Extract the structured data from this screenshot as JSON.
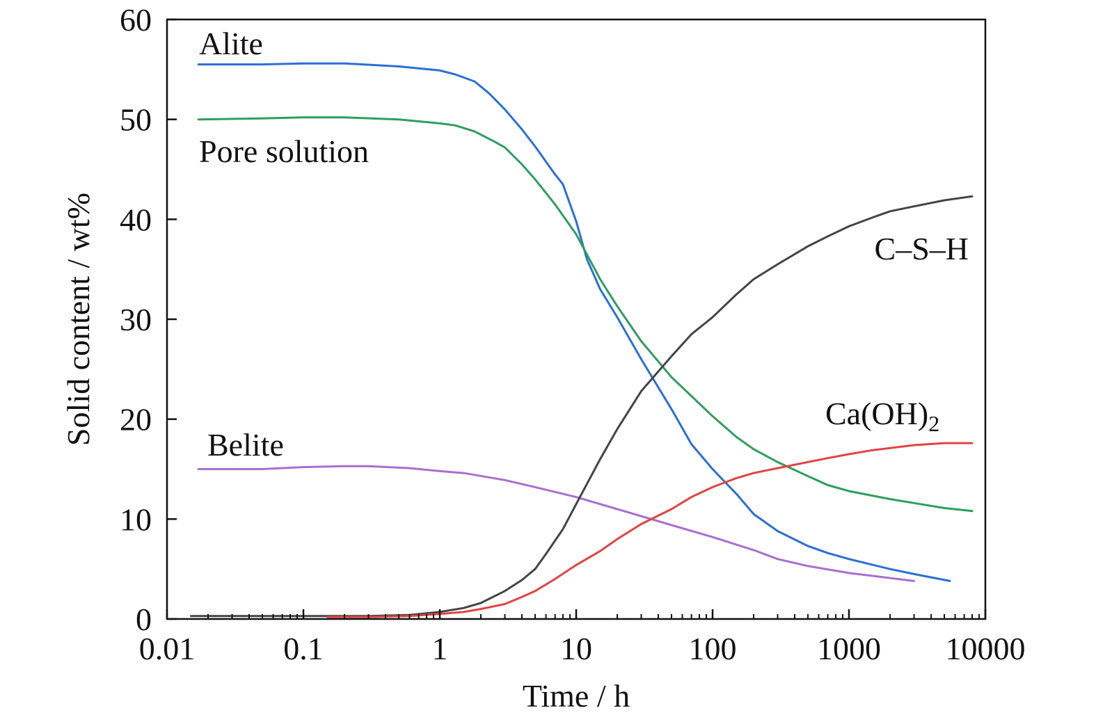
{
  "chart_data": {
    "type": "line",
    "title": "",
    "xlabel": "Time / h",
    "ylabel": "Solid content / wt%",
    "xscale": "log",
    "xlim": [
      0.01,
      10000
    ],
    "ylim": [
      0,
      60
    ],
    "grid": false,
    "legend": "none (series labelled directly on plot)",
    "x_ticks": [
      0.01,
      0.1,
      1,
      10,
      100,
      1000,
      10000
    ],
    "x_tick_labels": [
      "0.01",
      "0.1",
      "1",
      "10",
      "100",
      "1000",
      "10000"
    ],
    "y_ticks": [
      0,
      10,
      20,
      30,
      40,
      50,
      60
    ],
    "y_tick_labels": [
      "0",
      "10",
      "20",
      "30",
      "40",
      "50",
      "60"
    ],
    "series": [
      {
        "name": "Alite",
        "color": "#2a6fd6",
        "label_text": "Alite",
        "points": [
          [
            0.017,
            55.5
          ],
          [
            0.05,
            55.5
          ],
          [
            0.1,
            55.6
          ],
          [
            0.2,
            55.6
          ],
          [
            0.5,
            55.3
          ],
          [
            1,
            54.9
          ],
          [
            1.3,
            54.5
          ],
          [
            1.8,
            53.8
          ],
          [
            2.3,
            52.6
          ],
          [
            3,
            51.0
          ],
          [
            4,
            49.0
          ],
          [
            5,
            47.3
          ],
          [
            7,
            44.5
          ],
          [
            8,
            43.5
          ],
          [
            10,
            39.8
          ],
          [
            12,
            36.0
          ],
          [
            15,
            33.0
          ],
          [
            20,
            30.2
          ],
          [
            30,
            26.0
          ],
          [
            50,
            21.0
          ],
          [
            70,
            17.5
          ],
          [
            100,
            15.0
          ],
          [
            150,
            12.5
          ],
          [
            200,
            10.5
          ],
          [
            300,
            8.8
          ],
          [
            500,
            7.3
          ],
          [
            700,
            6.6
          ],
          [
            1000,
            6.0
          ],
          [
            2000,
            5.0
          ],
          [
            3000,
            4.5
          ],
          [
            5500,
            3.8
          ]
        ]
      },
      {
        "name": "Pore solution",
        "color": "#2e9e5e",
        "label_text": "Pore solution",
        "points": [
          [
            0.017,
            50.0
          ],
          [
            0.05,
            50.1
          ],
          [
            0.1,
            50.2
          ],
          [
            0.2,
            50.2
          ],
          [
            0.5,
            50.0
          ],
          [
            1,
            49.6
          ],
          [
            1.3,
            49.4
          ],
          [
            1.8,
            48.8
          ],
          [
            2.5,
            47.8
          ],
          [
            3,
            47.2
          ],
          [
            4,
            45.5
          ],
          [
            5,
            44.0
          ],
          [
            7,
            41.5
          ],
          [
            10,
            38.5
          ],
          [
            15,
            34.0
          ],
          [
            20,
            31.3
          ],
          [
            30,
            27.8
          ],
          [
            50,
            24.2
          ],
          [
            100,
            20.3
          ],
          [
            150,
            18.2
          ],
          [
            200,
            17.0
          ],
          [
            300,
            15.7
          ],
          [
            500,
            14.3
          ],
          [
            700,
            13.4
          ],
          [
            1000,
            12.8
          ],
          [
            2000,
            12.0
          ],
          [
            3000,
            11.6
          ],
          [
            5000,
            11.1
          ],
          [
            8000,
            10.8
          ]
        ]
      },
      {
        "name": "Belite",
        "color": "#a86fd0",
        "label_text": "Belite",
        "points": [
          [
            0.017,
            15.0
          ],
          [
            0.05,
            15.0
          ],
          [
            0.1,
            15.2
          ],
          [
            0.2,
            15.3
          ],
          [
            0.3,
            15.3
          ],
          [
            0.6,
            15.1
          ],
          [
            1,
            14.8
          ],
          [
            1.5,
            14.6
          ],
          [
            3,
            13.9
          ],
          [
            5,
            13.2
          ],
          [
            10,
            12.2
          ],
          [
            20,
            11.0
          ],
          [
            50,
            9.4
          ],
          [
            100,
            8.2
          ],
          [
            200,
            6.9
          ],
          [
            300,
            6.0
          ],
          [
            500,
            5.3
          ],
          [
            1000,
            4.6
          ],
          [
            2000,
            4.1
          ],
          [
            3000,
            3.8
          ]
        ]
      },
      {
        "name": "C–S–H",
        "color": "#444444",
        "label_text": "C–S–H",
        "points": [
          [
            0.015,
            0.3
          ],
          [
            0.1,
            0.3
          ],
          [
            0.3,
            0.3
          ],
          [
            0.6,
            0.4
          ],
          [
            1,
            0.7
          ],
          [
            1.5,
            1.1
          ],
          [
            2,
            1.6
          ],
          [
            3,
            2.8
          ],
          [
            4,
            3.9
          ],
          [
            5,
            5.0
          ],
          [
            6,
            6.5
          ],
          [
            8,
            9.0
          ],
          [
            10,
            11.5
          ],
          [
            15,
            16.0
          ],
          [
            20,
            19.0
          ],
          [
            30,
            22.8
          ],
          [
            50,
            26.3
          ],
          [
            70,
            28.5
          ],
          [
            100,
            30.2
          ],
          [
            150,
            32.5
          ],
          [
            200,
            34.0
          ],
          [
            300,
            35.5
          ],
          [
            500,
            37.3
          ],
          [
            700,
            38.3
          ],
          [
            1000,
            39.3
          ],
          [
            1500,
            40.2
          ],
          [
            2000,
            40.8
          ],
          [
            3000,
            41.3
          ],
          [
            5000,
            41.9
          ],
          [
            8000,
            42.3
          ]
        ]
      },
      {
        "name": "Ca(OH)2",
        "color": "#e04444",
        "label_text": "Ca(OH)",
        "label_subscript": "2",
        "points": [
          [
            0.15,
            0.2
          ],
          [
            0.3,
            0.2
          ],
          [
            0.6,
            0.3
          ],
          [
            1,
            0.5
          ],
          [
            1.5,
            0.7
          ],
          [
            2,
            1.0
          ],
          [
            3,
            1.5
          ],
          [
            4,
            2.2
          ],
          [
            5,
            2.8
          ],
          [
            7,
            4.0
          ],
          [
            10,
            5.4
          ],
          [
            15,
            6.8
          ],
          [
            20,
            8.0
          ],
          [
            30,
            9.5
          ],
          [
            50,
            11.0
          ],
          [
            70,
            12.2
          ],
          [
            100,
            13.2
          ],
          [
            150,
            14.1
          ],
          [
            200,
            14.6
          ],
          [
            300,
            15.1
          ],
          [
            500,
            15.7
          ],
          [
            700,
            16.1
          ],
          [
            1000,
            16.5
          ],
          [
            1500,
            16.9
          ],
          [
            2000,
            17.1
          ],
          [
            3000,
            17.4
          ],
          [
            5000,
            17.6
          ],
          [
            8000,
            17.6
          ]
        ]
      }
    ]
  }
}
